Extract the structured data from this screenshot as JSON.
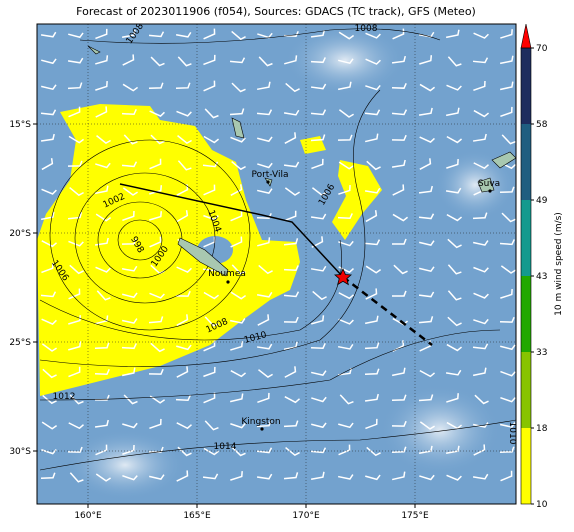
{
  "title": "Forecast of 2023011906 (f054), Sources: GDACS (TC track), GFS (Meteo)",
  "lat_labels": [
    "15°S",
    "20°S",
    "25°S",
    "30°S"
  ],
  "lon_labels": [
    "160°E",
    "165°E",
    "170°E",
    "175°E"
  ],
  "places": [
    "Port-Vila",
    "Noumea",
    "Suva",
    "Kingston"
  ],
  "isobar_labels": [
    "1008",
    "1008",
    "1002",
    "1004",
    "998",
    "1000",
    "1006",
    "1006",
    "1008",
    "1010",
    "1012",
    "1014",
    "1010"
  ],
  "colorbar": {
    "label": "10 m wind speed (m/s)",
    "ticks": [
      10,
      18,
      33,
      43,
      49,
      58,
      70
    ],
    "colors": [
      "#ffff00",
      "#88c400",
      "#22a800",
      "#139a8e",
      "#1f5e80",
      "#1e2d5e"
    ],
    "extend_color": "#ff0000"
  }
}
